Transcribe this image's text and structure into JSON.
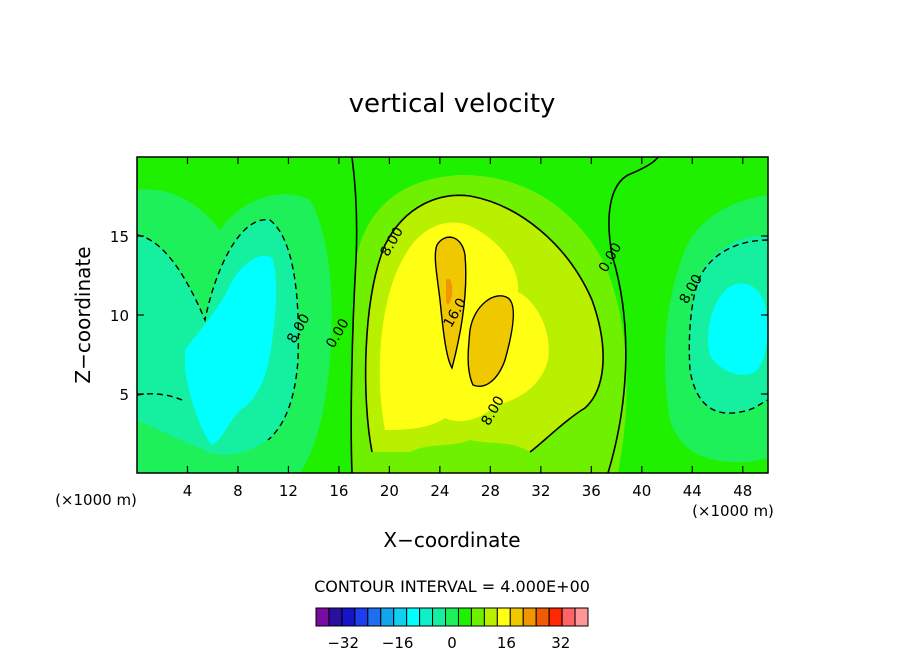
{
  "chart_data": {
    "type": "contour",
    "title": "vertical velocity",
    "xlabel": "X−coordinate",
    "ylabel": "Z−coordinate",
    "x_unit_left": "(×1000 m)",
    "x_unit_right": "(×1000 m)",
    "xlim": [
      0,
      50
    ],
    "ylim": [
      0,
      20
    ],
    "xticks": [
      4,
      8,
      12,
      16,
      20,
      24,
      28,
      32,
      36,
      40,
      44,
      48
    ],
    "yticks": [
      5,
      10,
      15
    ],
    "contour_interval_text": "CONTOUR INTERVAL = 4.000E+00",
    "contour_labels": [
      {
        "text": "8.00",
        "x": 20.5,
        "y": 14.5
      },
      {
        "text": "16.0",
        "x": 25.5,
        "y": 10.0
      },
      {
        "text": "8.00",
        "x": 28.5,
        "y": 3.8
      },
      {
        "text": "0.00",
        "x": 37.8,
        "y": 13.5
      },
      {
        "text": "8.00",
        "x": 44.2,
        "y": 11.5
      },
      {
        "text": "8.00",
        "x": 13.1,
        "y": 9.0
      },
      {
        "text": "0.00",
        "x": 16.2,
        "y": 8.7
      }
    ],
    "colorbar": {
      "ticks": [
        -32,
        -16,
        0,
        16,
        32
      ],
      "levels": [
        -40,
        -36,
        -32,
        -28,
        -24,
        -20,
        -16,
        -12,
        -8,
        -4,
        0,
        4,
        8,
        12,
        16,
        20,
        24,
        28,
        32,
        36,
        40
      ],
      "colors": [
        "#7b0aa0",
        "#2a0fa0",
        "#1515c8",
        "#1e3cf0",
        "#1e6ef0",
        "#12a6f0",
        "#10d0f0",
        "#00ffff",
        "#10f0c8",
        "#14f0a0",
        "#1ef05a",
        "#1ef000",
        "#6ef000",
        "#b8f000",
        "#ffff14",
        "#f0c800",
        "#f09600",
        "#f05a00",
        "#ff2800",
        "#ff6464",
        "#ff9696"
      ]
    }
  }
}
